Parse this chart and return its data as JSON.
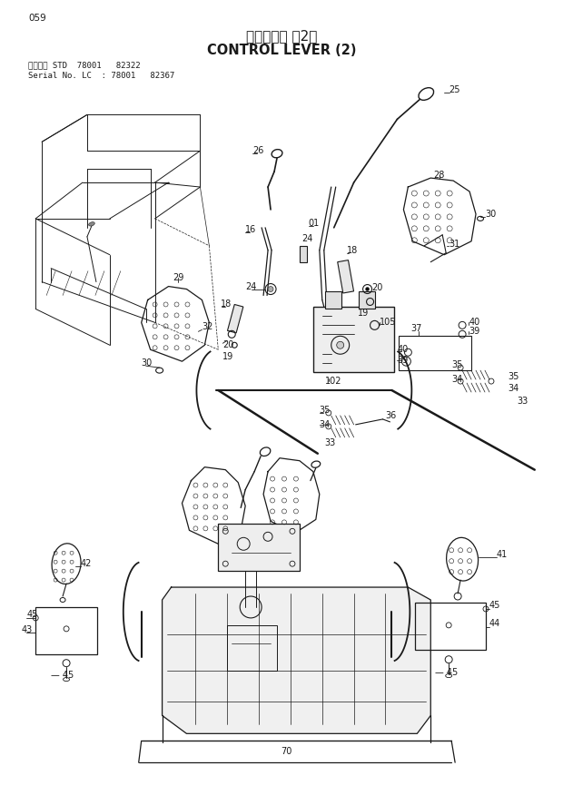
{
  "title_jp": "操作レバー （2）",
  "title_en": "CONTROL LEVER (2)",
  "page_number": "059",
  "serial_line1": "適用号機 STD  78001   82322",
  "serial_line2": "Serial No. LC  : 78001   82367",
  "bg_color": "#ffffff",
  "lc": "#1a1a1a",
  "tc": "#1a1a1a",
  "fig_w": 6.2,
  "fig_h": 8.76,
  "dpi": 100
}
